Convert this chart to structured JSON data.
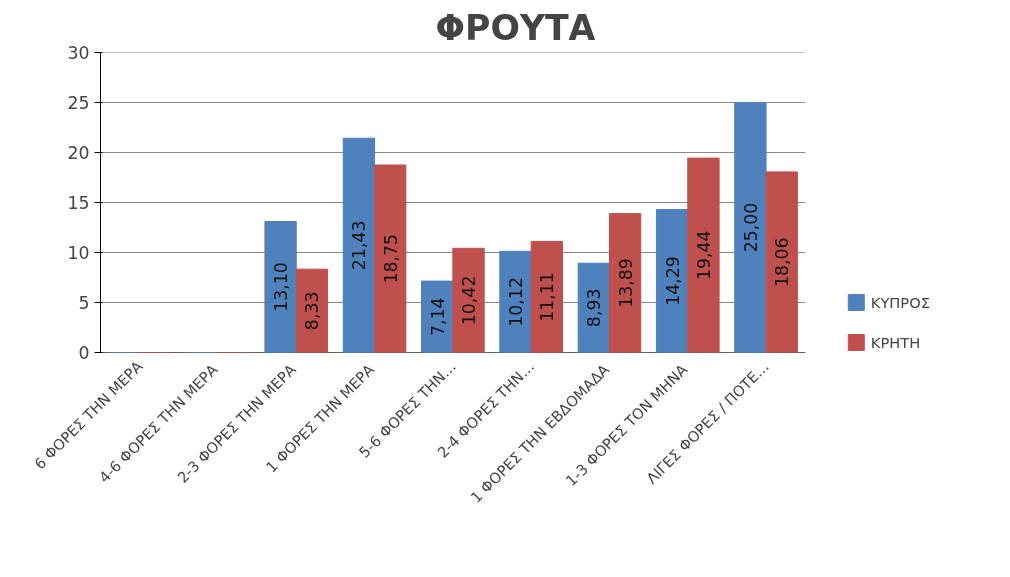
{
  "chart_data": {
    "type": "bar",
    "title": "ΦΡΟΥΤΑ",
    "categories": [
      "6 ΦΟΡΕΣ ΤΗΝ ΜΕΡΑ",
      "4-6 ΦΟΡΕΣ ΤΗΝ  ΜΕΡΑ",
      "2-3 ΦΟΡΕΣ ΤΗΝ  ΜΕΡΑ",
      "1 ΦΟΡΕΣ ΤΗΝ  ΜΕΡΑ",
      "5-6 ΦΟΡΕΣ ΤΗΝ…",
      "2-4 ΦΟΡΕΣ ΤΗΝ…",
      "1 ΦΟΡΕΣ ΤΗΝ  ΕΒΔΟΜΑΔΑ",
      "1-3 ΦΟΡΕΣ ΤΟΝ  ΜΗΝΑ",
      "ΛΙΓΕΣ ΦΟΡΕΣ / ΠΟΤΕ…"
    ],
    "series": [
      {
        "name": "ΚΥΠΡΟΣ",
        "color": "#4f81bd",
        "values": [
          0,
          0,
          13.1,
          21.43,
          7.14,
          10.12,
          8.93,
          14.29,
          25.0
        ],
        "value_labels": [
          null,
          null,
          "13,10",
          "21,43",
          "7,14",
          "10,12",
          "8,93",
          "14,29",
          "25,00"
        ]
      },
      {
        "name": "ΚΡΗΤΗ",
        "color": "#c0504d",
        "values": [
          0,
          0,
          8.33,
          18.75,
          10.42,
          11.11,
          13.89,
          19.44,
          18.06
        ],
        "value_labels": [
          null,
          null,
          "8,33",
          "18,75",
          "10,42",
          "11,11",
          "13,89",
          "19,44",
          "18,06"
        ]
      }
    ],
    "ylim": [
      0,
      30
    ],
    "yticks": [
      0,
      5,
      10,
      15,
      20,
      25,
      30
    ],
    "grid": "y",
    "legend": "right"
  }
}
